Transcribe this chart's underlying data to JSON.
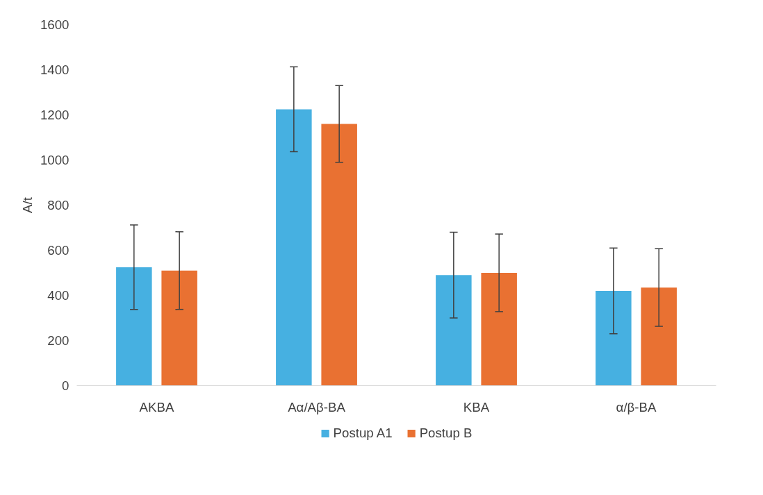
{
  "chart_data": {
    "type": "bar",
    "ylabel": "A/t",
    "categories": [
      "AKBA",
      "Aα/Aβ-BA",
      "KBA",
      "α/β-BA"
    ],
    "series": [
      {
        "name": "Postup A1",
        "color": "#46b0e1",
        "values": [
          525,
          1225,
          490,
          420
        ],
        "errors": [
          187,
          188,
          190,
          190
        ]
      },
      {
        "name": "Postup B",
        "color": "#e97132",
        "values": [
          510,
          1160,
          500,
          435
        ],
        "errors": [
          172,
          170,
          172,
          172
        ]
      }
    ],
    "ylim": [
      0,
      1600
    ],
    "yticks": [
      0,
      200,
      400,
      600,
      800,
      1000,
      1200,
      1400,
      1600
    ],
    "grid": false,
    "legend": "bottom"
  }
}
